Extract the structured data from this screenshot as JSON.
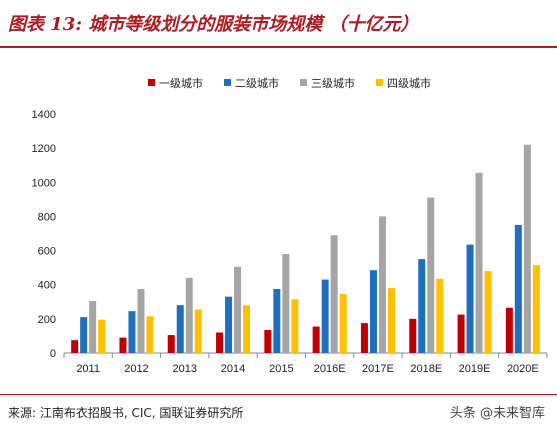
{
  "title": "图表 13: 城市等级划分的服装市场规模 （十亿元）",
  "source": "来源: 江南布衣招股书, CIC, 国联证券研究所",
  "watermark": "头条 @未来智库",
  "colors": {
    "accent": "#b01b22",
    "series": [
      "#c00000",
      "#1f6fbf",
      "#a5a5a5",
      "#ffc000"
    ]
  },
  "chart_data": {
    "type": "bar",
    "categories": [
      "2011",
      "2012",
      "2013",
      "2014",
      "2015",
      "2016E",
      "2017E",
      "2018E",
      "2019E",
      "2020E"
    ],
    "series": [
      {
        "name": "一级城市",
        "values": [
          75,
          90,
          105,
          120,
          135,
          155,
          175,
          200,
          225,
          265
        ]
      },
      {
        "name": "二级城市",
        "values": [
          210,
          245,
          280,
          330,
          375,
          430,
          485,
          550,
          635,
          750
        ]
      },
      {
        "name": "三级城市",
        "values": [
          305,
          375,
          440,
          505,
          580,
          690,
          800,
          910,
          1055,
          1220
        ]
      },
      {
        "name": "四级城市",
        "values": [
          195,
          215,
          255,
          280,
          315,
          345,
          380,
          435,
          480,
          515
        ]
      }
    ],
    "ylim": [
      0,
      1400
    ],
    "yticks": [
      0,
      200,
      400,
      600,
      800,
      1000,
      1200,
      1400
    ],
    "legend": "top",
    "grid": false
  }
}
